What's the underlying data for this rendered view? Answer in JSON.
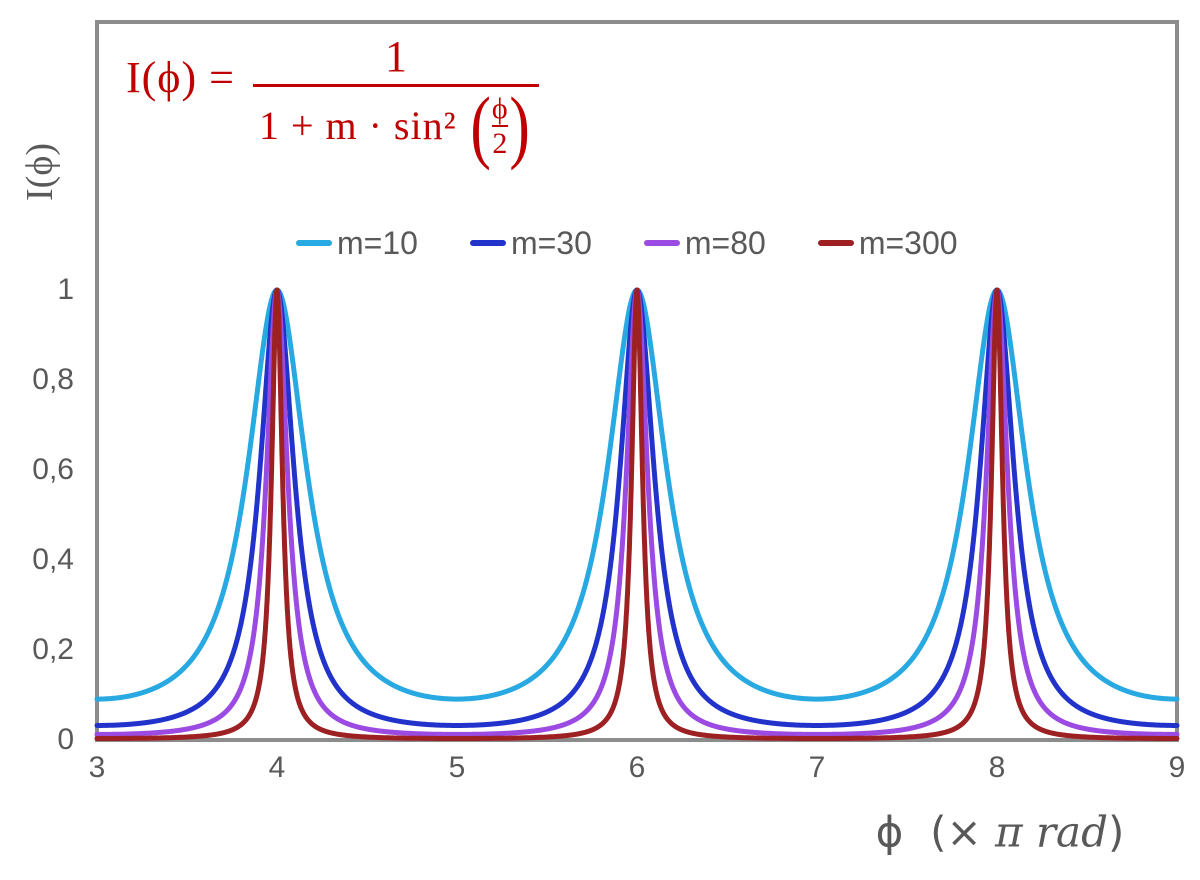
{
  "colors": {
    "formula_red": "#C00000",
    "text_gray": "#595959",
    "frame_gray": "#8C8C8C",
    "background": "#FFFFFF"
  },
  "formula": {
    "lhs": "I(ϕ) =",
    "numerator": "1",
    "denominator_prefix": "1 + m · sin²",
    "open_paren": "(",
    "inner_numerator": "ϕ",
    "inner_denominator": "2",
    "close_paren": ")"
  },
  "y_axis": {
    "title": "I(ϕ)",
    "tick_labels": [
      "1",
      "0,8",
      "0,6",
      "0,4",
      "0,2",
      "0"
    ],
    "tick_values": [
      1,
      0.8,
      0.6,
      0.4,
      0.2,
      0
    ]
  },
  "x_axis": {
    "title_phi": "ϕ",
    "title_open": "(×",
    "title_italic": "π rad",
    "title_close": ")",
    "tick_labels": [
      "3",
      "4",
      "5",
      "6",
      "7",
      "8",
      "9"
    ],
    "tick_values": [
      3,
      4,
      5,
      6,
      7,
      8,
      9
    ]
  },
  "chart_data": {
    "type": "line",
    "title": "",
    "formula": "I(φ) = 1 / (1 + m·sin²(φ/2))",
    "xlabel": "φ (× π rad)",
    "ylabel": "I(φ)",
    "xlim": [
      3,
      9
    ],
    "ylim": [
      0,
      1.6
    ],
    "x_ticks": [
      3,
      4,
      5,
      6,
      7,
      8,
      9
    ],
    "y_ticks": [
      0,
      0.2,
      0.4,
      0.6,
      0.8,
      1
    ],
    "grid": false,
    "legend_position": "top-center-inside",
    "x_units": "phase in multiples of π rad",
    "series": [
      {
        "name": "m=10",
        "m": 10,
        "color": "#29A9E1",
        "peaks_x": [
          4,
          6,
          8
        ],
        "peak_value": 1,
        "min_value": 0.0909
      },
      {
        "name": "m=30",
        "m": 30,
        "color": "#2233CC",
        "peaks_x": [
          4,
          6,
          8
        ],
        "peak_value": 1,
        "min_value": 0.0323
      },
      {
        "name": "m=80",
        "m": 80,
        "color": "#9B4AE2",
        "peaks_x": [
          4,
          6,
          8
        ],
        "peak_value": 1,
        "min_value": 0.0123
      },
      {
        "name": "m=300",
        "m": 300,
        "color": "#9D2123",
        "peaks_x": [
          4,
          6,
          8
        ],
        "peak_value": 1,
        "min_value": 0.0033
      }
    ]
  }
}
